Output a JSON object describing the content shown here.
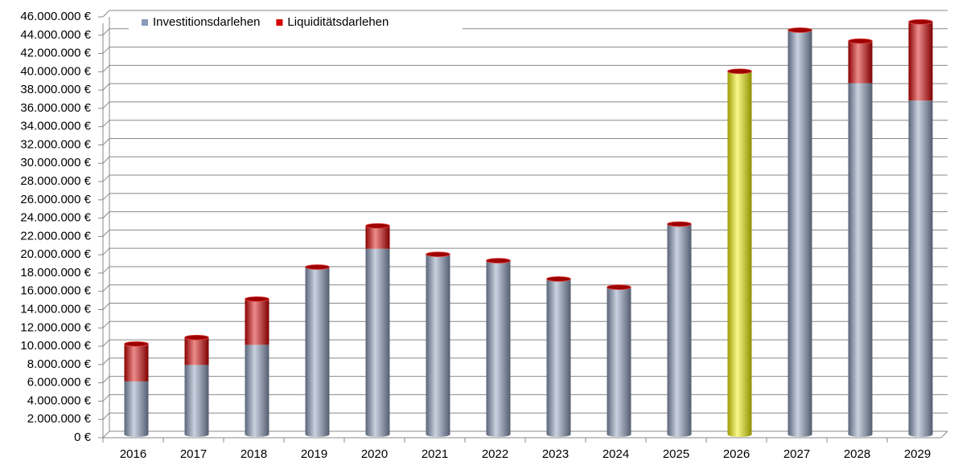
{
  "chart_data": {
    "type": "bar",
    "stacked": true,
    "categories": [
      "2016",
      "2017",
      "2018",
      "2019",
      "2020",
      "2021",
      "2022",
      "2023",
      "2024",
      "2025",
      "2026",
      "2027",
      "2028",
      "2029"
    ],
    "series": [
      {
        "name": "Investitionsdarlehen",
        "color": "#8a9bbb",
        "point_colors": [
          "#8a9bbb",
          "#8a9bbb",
          "#8a9bbb",
          "#8a9bbb",
          "#8a9bbb",
          "#8a9bbb",
          "#8a9bbb",
          "#8a9bbb",
          "#8a9bbb",
          "#8a9bbb",
          "#f0f000",
          "#8a9bbb",
          "#8a9bbb",
          "#8a9bbb"
        ],
        "values": [
          5800000,
          7600000,
          9800000,
          18300000,
          20300000,
          19700000,
          19000000,
          17000000,
          16100000,
          23000000,
          39700000,
          44200000,
          38400000,
          36500000
        ]
      },
      {
        "name": "Liquiditätsdarlehen",
        "color": "#d40000",
        "values": [
          4100000,
          3000000,
          5000000,
          0,
          2500000,
          0,
          0,
          0,
          0,
          0,
          0,
          0,
          4600000,
          8600000
        ]
      }
    ],
    "ylim": [
      0,
      46000000
    ],
    "yticks": [
      {
        "value": 0,
        "label": "0 €"
      },
      {
        "value": 2000000,
        "label": "2.000.000 €"
      },
      {
        "value": 4000000,
        "label": "4.000.000 €"
      },
      {
        "value": 6000000,
        "label": "6.000.000 €"
      },
      {
        "value": 8000000,
        "label": "8.000.000 €"
      },
      {
        "value": 10000000,
        "label": "10.000.000 €"
      },
      {
        "value": 12000000,
        "label": "12.000.000 €"
      },
      {
        "value": 14000000,
        "label": "14.000.000 €"
      },
      {
        "value": 16000000,
        "label": "16.000.000 €"
      },
      {
        "value": 18000000,
        "label": "18.000.000 €"
      },
      {
        "value": 20000000,
        "label": "20.000.000 €"
      },
      {
        "value": 22000000,
        "label": "22.000.000 €"
      },
      {
        "value": 24000000,
        "label": "24.000.000 €"
      },
      {
        "value": 26000000,
        "label": "26.000.000 €"
      },
      {
        "value": 28000000,
        "label": "28.000.000 €"
      },
      {
        "value": 30000000,
        "label": "30.000.000 €"
      },
      {
        "value": 32000000,
        "label": "32.000.000 €"
      },
      {
        "value": 34000000,
        "label": "34.000.000 €"
      },
      {
        "value": 36000000,
        "label": "36.000.000 €"
      },
      {
        "value": 38000000,
        "label": "38.000.000 €"
      },
      {
        "value": 40000000,
        "label": "40.000.000 €"
      },
      {
        "value": 42000000,
        "label": "42.000.000 €"
      },
      {
        "value": 44000000,
        "label": "44.000.000 €"
      },
      {
        "value": 46000000,
        "label": "46.000.000 €"
      }
    ],
    "grid": true,
    "legend": "top"
  }
}
